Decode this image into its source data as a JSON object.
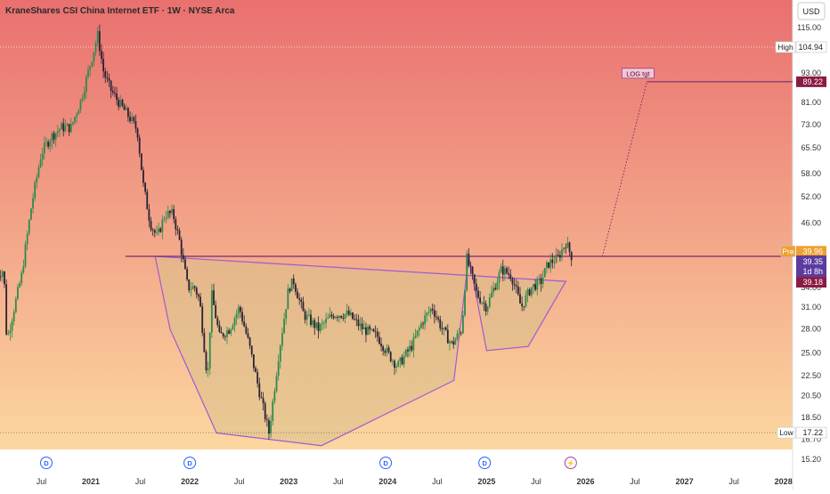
{
  "header": {
    "title": "KraneShares CSI China Internet ETF · 1W · NYSE Arca",
    "currency_button": "USD"
  },
  "y_ticks": [
    "115.00",
    "93.00",
    "81.00",
    "73.00",
    "65.50",
    "58.00",
    "52.00",
    "46.00",
    "34.00",
    "31.00",
    "28.00",
    "25.00",
    "22.50",
    "20.50",
    "18.50",
    "16.70",
    "15.20"
  ],
  "x_ticks": [
    "Jul",
    "2021",
    "Jul",
    "2022",
    "Jul",
    "2023",
    "Jul",
    "2024",
    "Jul",
    "2025",
    "Jul",
    "2026",
    "Jul",
    "2027",
    "Jul",
    "2028"
  ],
  "price_labels": {
    "high": {
      "tag": "High",
      "value": "104.94"
    },
    "low": {
      "tag": "Low",
      "value": "17.22"
    },
    "target": {
      "value": "89.22"
    },
    "pre": {
      "tag": "Pre",
      "value": "39.96"
    },
    "last": {
      "value": "39.35",
      "countdown": "1d 8h"
    },
    "prev": {
      "value": "39.18"
    }
  },
  "annotations": {
    "log_target": "LOG tgt"
  },
  "event_markers": [
    {
      "label": "D",
      "icon": "dividend-icon"
    },
    {
      "label": "D",
      "icon": "dividend-icon"
    },
    {
      "label": "D",
      "icon": "dividend-icon"
    },
    {
      "label": "D",
      "icon": "dividend-icon"
    },
    {
      "label": "⚡",
      "icon": "lightning-icon"
    }
  ],
  "colors": {
    "bg_top": "#e97070",
    "bg_bottom": "#fcd7a0",
    "up_candle": "#2f8a4c",
    "down_candle": "#2a2235",
    "pattern_stroke": "#a15bd0",
    "pattern_fill": "#d9c08a",
    "level_line": "#7a2a6a",
    "target_badge": "#8b1a45",
    "last_badge": "#5b3c9e",
    "pre_badge": "#f0a030"
  },
  "chart_data": {
    "type": "candlestick",
    "title": "KraneShares CSI China Internet ETF · 1W · NYSE Arca",
    "scale": "log",
    "ylim": [
      14.5,
      125
    ],
    "xlim": [
      2020.05,
      2028.2
    ],
    "grid": false,
    "price_path": [
      [
        2020.05,
        36
      ],
      [
        2020.12,
        37
      ],
      [
        2020.15,
        26.5
      ],
      [
        2020.3,
        36
      ],
      [
        2020.4,
        50
      ],
      [
        2020.5,
        64
      ],
      [
        2020.6,
        69
      ],
      [
        2020.7,
        72
      ],
      [
        2020.8,
        72
      ],
      [
        2020.9,
        82
      ],
      [
        2021.0,
        98
      ],
      [
        2021.07,
        111
      ],
      [
        2021.13,
        93
      ],
      [
        2021.2,
        86
      ],
      [
        2021.3,
        80
      ],
      [
        2021.4,
        75
      ],
      [
        2021.47,
        71
      ],
      [
        2021.53,
        55
      ],
      [
        2021.6,
        46
      ],
      [
        2021.67,
        43
      ],
      [
        2021.75,
        48
      ],
      [
        2021.83,
        48
      ],
      [
        2021.9,
        42
      ],
      [
        2021.98,
        34
      ],
      [
        2022.05,
        34
      ],
      [
        2022.1,
        32
      ],
      [
        2022.18,
        22
      ],
      [
        2022.22,
        33
      ],
      [
        2022.3,
        27
      ],
      [
        2022.4,
        28
      ],
      [
        2022.5,
        31
      ],
      [
        2022.6,
        26
      ],
      [
        2022.7,
        21
      ],
      [
        2022.8,
        17.22
      ],
      [
        2022.9,
        25
      ],
      [
        2023.0,
        34
      ],
      [
        2023.05,
        35
      ],
      [
        2023.15,
        30
      ],
      [
        2023.3,
        28
      ],
      [
        2023.45,
        30
      ],
      [
        2023.6,
        30
      ],
      [
        2023.75,
        28
      ],
      [
        2023.9,
        27
      ],
      [
        2024.0,
        25
      ],
      [
        2024.1,
        23.5
      ],
      [
        2024.25,
        26
      ],
      [
        2024.35,
        29
      ],
      [
        2024.45,
        31
      ],
      [
        2024.55,
        28
      ],
      [
        2024.65,
        26
      ],
      [
        2024.75,
        28
      ],
      [
        2024.8,
        39
      ],
      [
        2024.9,
        33
      ],
      [
        2025.0,
        31
      ],
      [
        2025.05,
        33
      ],
      [
        2025.15,
        37
      ],
      [
        2025.25,
        36
      ],
      [
        2025.35,
        31
      ],
      [
        2025.45,
        34
      ],
      [
        2025.55,
        35
      ],
      [
        2025.62,
        38
      ],
      [
        2025.72,
        39
      ],
      [
        2025.8,
        42
      ],
      [
        2025.86,
        39.35
      ]
    ],
    "high": 104.94,
    "low": 17.22,
    "last": 39.35,
    "premarket": 39.96,
    "previous_close": 39.18,
    "neckline": 39.35,
    "target": 89.22,
    "pattern": "inverse head and shoulders / cup",
    "pattern_vertices": [
      [
        2021.65,
        39.35
      ],
      [
        2021.8,
        28
      ],
      [
        2022.27,
        17.2
      ],
      [
        2023.33,
        16.2
      ],
      [
        2024.67,
        22
      ],
      [
        2024.82,
        39.35
      ],
      [
        2025.0,
        25.3
      ],
      [
        2025.42,
        25.8
      ],
      [
        2025.8,
        35
      ]
    ],
    "target_projection": [
      [
        2026.17,
        39.35
      ],
      [
        2026.62,
        89.22
      ]
    ],
    "dividend_markers_x": [
      2020.55,
      2022.0,
      2023.98,
      2024.98
    ],
    "lightning_marker_x": 2025.85
  }
}
